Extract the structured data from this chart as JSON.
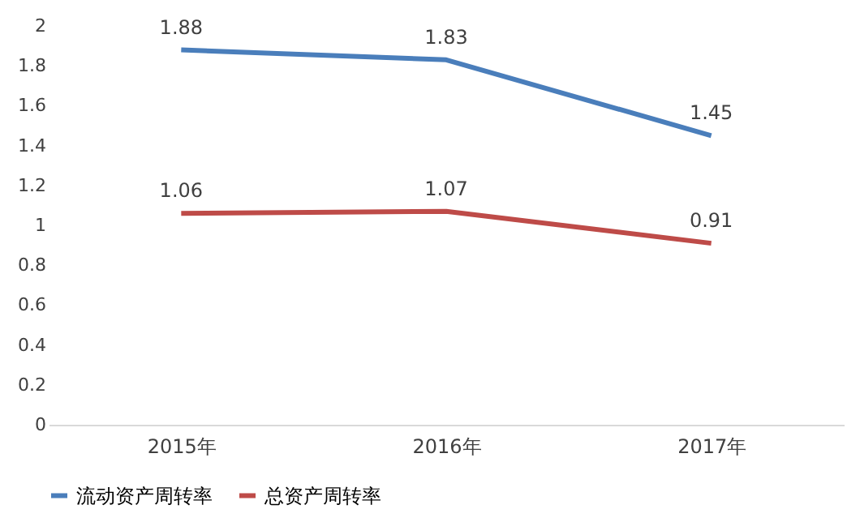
{
  "chart_data": {
    "type": "line",
    "categories": [
      "2015年",
      "2016年",
      "2017年"
    ],
    "series": [
      {
        "name": "流动资产周转率",
        "color": "#4a7ebb",
        "values": [
          1.88,
          1.83,
          1.45
        ]
      },
      {
        "name": "总资产周转率",
        "color": "#be4b48",
        "values": [
          1.06,
          1.07,
          0.91
        ]
      }
    ],
    "ylim": [
      0,
      2
    ],
    "yticks": [
      0,
      0.2,
      0.4,
      0.6,
      0.8,
      1,
      1.2,
      1.4,
      1.6,
      1.8,
      2
    ],
    "grid": false,
    "legend": "bottom",
    "data_labels": true,
    "marker": "none",
    "line_style": "solid"
  }
}
